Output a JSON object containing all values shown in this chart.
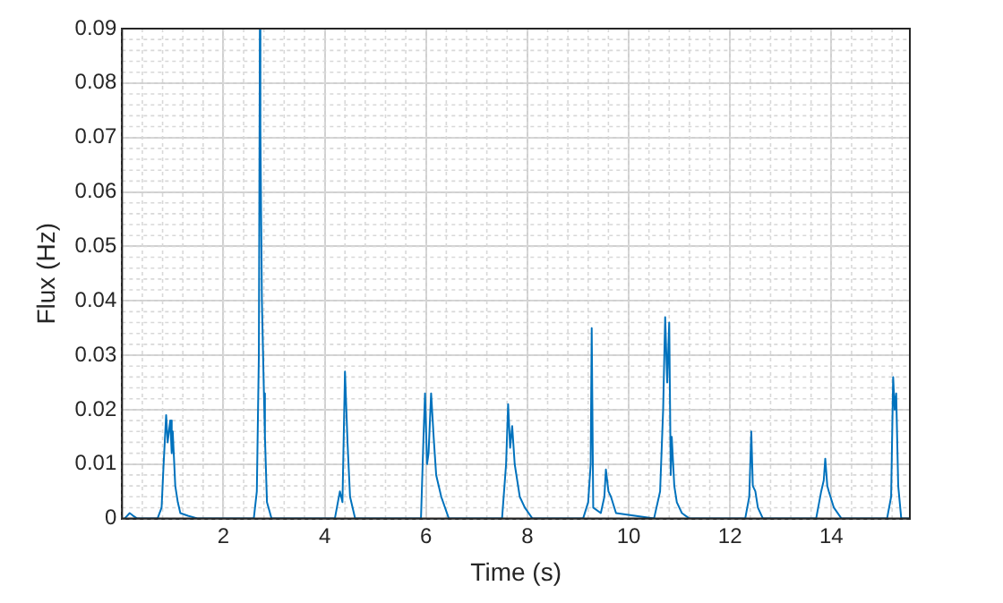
{
  "chart_data": {
    "type": "line",
    "xlabel": "Time (s)",
    "ylabel": "Flux (Hz)",
    "xlim": [
      0,
      15.55
    ],
    "xticks": [
      2,
      4,
      6,
      8,
      10,
      12,
      14
    ],
    "ylim": [
      0,
      0.09
    ],
    "yticks": [
      0,
      0.01,
      0.02,
      0.03,
      0.04,
      0.05,
      0.06,
      0.07,
      0.08,
      0.09
    ],
    "grid": true,
    "legend": false,
    "marker": "none",
    "line_style": "solid",
    "series": [
      {
        "color": "#0072bd",
        "x": [
          0.05,
          0.15,
          0.22,
          0.3,
          0.4,
          0.7,
          0.78,
          0.82,
          0.87,
          0.9,
          0.95,
          0.98,
          1.0,
          1.05,
          1.1,
          1.15,
          1.3,
          1.5,
          2.6,
          2.66,
          2.7,
          2.72,
          2.73,
          2.76,
          2.8,
          2.82,
          2.86,
          2.95,
          4.2,
          4.3,
          4.35,
          4.4,
          4.45,
          4.5,
          4.6,
          5.9,
          5.95,
          5.98,
          6.02,
          6.05,
          6.1,
          6.15,
          6.2,
          6.3,
          6.45,
          7.5,
          7.58,
          7.62,
          7.66,
          7.7,
          7.75,
          7.85,
          7.95,
          8.1,
          9.1,
          9.2,
          9.25,
          9.27,
          9.3,
          9.45,
          9.52,
          9.55,
          9.6,
          9.65,
          9.75,
          10.5,
          10.62,
          10.68,
          10.72,
          10.76,
          10.8,
          10.83,
          10.85,
          10.9,
          10.95,
          11.05,
          11.2,
          12.3,
          12.38,
          12.42,
          12.45,
          12.5,
          12.55,
          12.65,
          13.7,
          13.8,
          13.85,
          13.88,
          13.92,
          13.95,
          14.05,
          14.2,
          15.1,
          15.18,
          15.22,
          15.25,
          15.28,
          15.32,
          15.38,
          15.55
        ],
        "values": [
          0,
          0.001,
          0.0005,
          0,
          0,
          0,
          0.002,
          0.01,
          0.019,
          0.014,
          0.018,
          0.012,
          0.016,
          0.006,
          0.003,
          0.001,
          0.0005,
          0,
          0,
          0.005,
          0.03,
          0.09,
          0.072,
          0.04,
          0.023,
          0.015,
          0.003,
          0,
          0,
          0.005,
          0.003,
          0.027,
          0.014,
          0.004,
          0,
          0,
          0.015,
          0.023,
          0.01,
          0.012,
          0.023,
          0.015,
          0.008,
          0.004,
          0,
          0,
          0.01,
          0.021,
          0.013,
          0.017,
          0.01,
          0.004,
          0.002,
          0,
          0,
          0.003,
          0.01,
          0.035,
          0.002,
          0.001,
          0.004,
          0.009,
          0.005,
          0.004,
          0.001,
          0,
          0.005,
          0.02,
          0.037,
          0.025,
          0.036,
          0.008,
          0.015,
          0.006,
          0.003,
          0.001,
          0,
          0,
          0.004,
          0.016,
          0.006,
          0.005,
          0.002,
          0,
          0,
          0.005,
          0.007,
          0.011,
          0.006,
          0.005,
          0.002,
          0,
          0,
          0.004,
          0.026,
          0.02,
          0.023,
          0.006,
          0,
          0
        ]
      }
    ]
  }
}
